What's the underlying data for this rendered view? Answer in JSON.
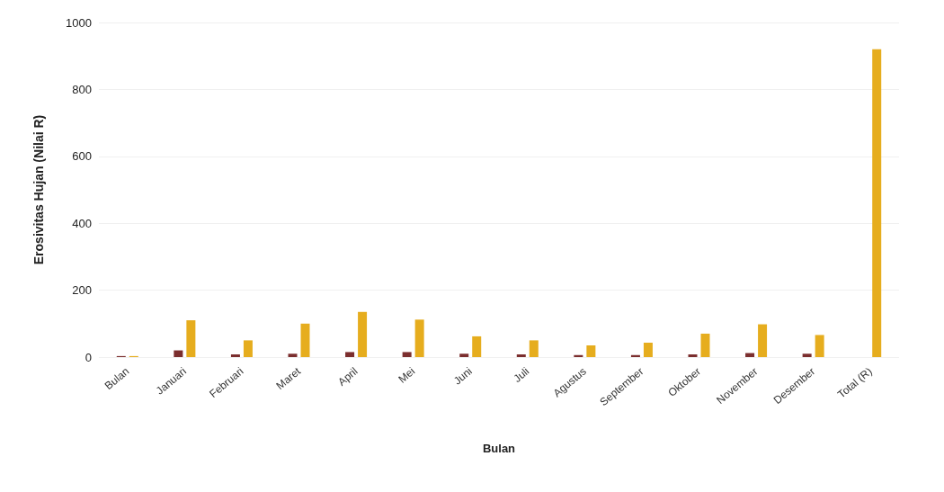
{
  "chart_data": {
    "type": "bar",
    "xlabel": "Bulan",
    "ylabel": "Erosivitas Hujan (Nilai R)",
    "categories": [
      "Bulan",
      "Januari",
      "Februari",
      "Maret",
      "April",
      "Mei",
      "Juni",
      "Juli",
      "Agustus",
      "September",
      "Oktober",
      "November",
      "Desember",
      "Total (R)"
    ],
    "series": [
      {
        "color": "#7b2e2e",
        "values": [
          3,
          20,
          8,
          10,
          15,
          15,
          10,
          8,
          6,
          6,
          8,
          12,
          10,
          null
        ]
      },
      {
        "color": "#e6ad1e",
        "values": [
          3,
          110,
          50,
          100,
          135,
          112,
          62,
          50,
          35,
          43,
          70,
          98,
          66,
          920
        ]
      }
    ],
    "ylim": [
      0,
      1000
    ],
    "yticks": [
      0,
      200,
      400,
      600,
      800,
      1000
    ],
    "grid": "y"
  }
}
